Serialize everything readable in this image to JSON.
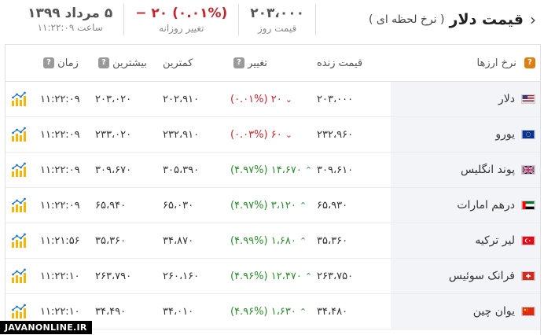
{
  "header": {
    "title": "قیمت دلار",
    "subtitle": "( نرخ لحظه ای )",
    "day_price": "۲۰۳،۰۰۰",
    "day_price_label": "قیمت روز",
    "daily_change": "(۰.۰۱%) ۲۰ −",
    "daily_change_label": "تغییر روزانه",
    "date": "۵ مرداد ۱۳۹۹",
    "time_label": "ساعت ۱۱:۲۲:۰۹"
  },
  "table": {
    "headers": {
      "currency": "نرخ ارزها",
      "live_price": "قیمت زنده",
      "change": "تغییر",
      "lowest": "کمترین",
      "highest": "بیشترین",
      "time": "زمان"
    },
    "rows": [
      {
        "name": "دلار",
        "flag": "us",
        "live": "۲۰۳،۰۰۰",
        "change": "(۰.۰۱%) ۲۰",
        "dir": "down",
        "low": "۲۰۲،۹۱۰",
        "high": "۲۰۳،۰۲۰",
        "time": "۱۱:۲۲:۰۹"
      },
      {
        "name": "یورو",
        "flag": "eu",
        "live": "۲۳۲،۹۶۰",
        "change": "(۰.۰۳%) ۶۰",
        "dir": "down",
        "low": "۲۳۲،۹۱۰",
        "high": "۲۳۳،۰۲۰",
        "time": "۱۱:۲۲:۰۹"
      },
      {
        "name": "پوند انگلیس",
        "flag": "gb",
        "live": "۳۰۹،۶۱۰",
        "change": "(۴.۹۷%) ۱۴،۶۷۰",
        "dir": "up",
        "low": "۳۰۵،۳۹۰",
        "high": "۳۰۹،۶۷۰",
        "time": "۱۱:۲۲:۰۹"
      },
      {
        "name": "درهم امارات",
        "flag": "ae",
        "live": "۶۵،۹۳۰",
        "change": "(۴.۹۷%) ۳،۱۲۰",
        "dir": "up",
        "low": "۶۵،۰۳۰",
        "high": "۶۵،۹۴۰",
        "time": "۱۱:۲۲:۰۹"
      },
      {
        "name": "لیر ترکیه",
        "flag": "tr",
        "live": "۳۵،۳۶۰",
        "change": "(۴.۹۹%) ۱،۶۸۰",
        "dir": "up",
        "low": "۳۴،۸۷۰",
        "high": "۳۵،۳۶۰",
        "time": "۱۱:۲۱:۵۶"
      },
      {
        "name": "فرانک سوئیس",
        "flag": "ch",
        "live": "۲۶۳،۷۵۰",
        "change": "(۴.۹۶%) ۱۲،۴۷۰",
        "dir": "up",
        "low": "۲۶۰،۱۶۰",
        "high": "۲۶۳،۷۹۰",
        "time": "۱۱:۲۲:۱۰"
      },
      {
        "name": "یوان چین",
        "flag": "cn",
        "live": "۳۴،۴۸۰",
        "change": "(۴.۹۶%) ۱،۶۳۰",
        "dir": "up",
        "low": "۳۴،۰۱۰",
        "high": "۳۴،۴۹۰",
        "time": "۱۱:۲۲:۱۰"
      }
    ]
  },
  "icons": {
    "header_chevron": "chevron-left-icon",
    "sort": "sort-icon",
    "help": "question-icon",
    "chart": "chart-icon"
  },
  "colors": {
    "up": "#2e8b2e",
    "down": "#c1272d",
    "accent": "#e07d10"
  },
  "watermark": "JAVANONLINE.IR"
}
